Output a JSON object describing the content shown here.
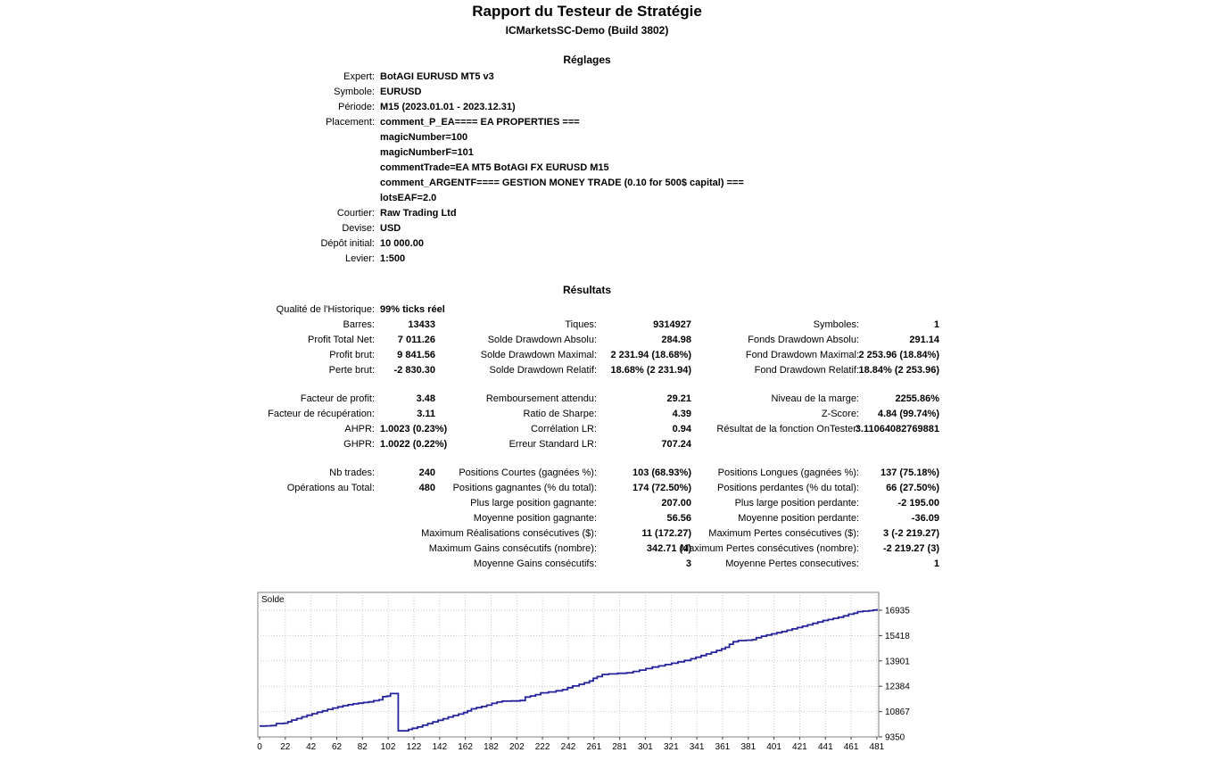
{
  "report": {
    "title": "Rapport du Testeur de Stratégie",
    "subtitle": "ICMarketsSC-Demo (Build 3802)",
    "settings_header": "Réglages",
    "results_header": "Résultats",
    "settings": [
      {
        "label": "Expert:",
        "value": "BotAGI EURUSD MT5 v3"
      },
      {
        "label": "Symbole:",
        "value": "EURUSD"
      },
      {
        "label": "Période:",
        "value": "M15 (2023.01.01 - 2023.12.31)"
      },
      {
        "label": "Placement:",
        "value": "comment_P_EA==== EA PROPERTIES ==="
      },
      {
        "label": "",
        "value": "magicNumber=100"
      },
      {
        "label": "",
        "value": "magicNumberF=101"
      },
      {
        "label": "",
        "value": "commentTrade=EA MT5 BotAGI FX EURUSD M15"
      },
      {
        "label": "",
        "value": "comment_ARGENTF==== GESTION MONEY TRADE (0.10 for 500$ capital) ==="
      },
      {
        "label": "",
        "value": "lotsEAF=2.0"
      },
      {
        "label": "Courtier:",
        "value": "Raw Trading Ltd"
      },
      {
        "label": "Devise:",
        "value": "USD"
      },
      {
        "label": "Dépôt initial:",
        "value": "10 000.00"
      },
      {
        "label": "Levier:",
        "value": "1:500"
      }
    ],
    "results_groups": [
      [
        [
          {
            "l": "Qualité de l'Historique:",
            "v": "99% ticks réel",
            "a": "l"
          },
          {
            "l": "",
            "v": ""
          },
          {
            "l": "",
            "v": ""
          }
        ],
        [
          {
            "l": "Barres:",
            "v": "13433"
          },
          {
            "l": "Tiques:",
            "v": "9314927"
          },
          {
            "l": "Symboles:",
            "v": "1"
          }
        ],
        [
          {
            "l": "Profit Total Net:",
            "v": "7 011.26"
          },
          {
            "l": "Solde Drawdown Absolu:",
            "v": "284.98"
          },
          {
            "l": "Fonds Drawdown Absolu:",
            "v": "291.14"
          }
        ],
        [
          {
            "l": "Profit brut:",
            "v": "9 841.56"
          },
          {
            "l": "Solde Drawdown Maximal:",
            "v": "2 231.94 (18.68%)"
          },
          {
            "l": "Fond Drawdown Maximal:",
            "v": "2 253.96 (18.84%)"
          }
        ],
        [
          {
            "l": "Perte brut:",
            "v": "-2 830.30"
          },
          {
            "l": "Solde Drawdown Relatif:",
            "v": "18.68% (2 231.94)"
          },
          {
            "l": "Fond Drawdown Relatif:",
            "v": "18.84% (2 253.96)"
          }
        ]
      ],
      [
        [
          {
            "l": "Facteur de profit:",
            "v": "3.48"
          },
          {
            "l": "Remboursement attendu:",
            "v": "29.21"
          },
          {
            "l": "Niveau de la marge:",
            "v": "2255.86%"
          }
        ],
        [
          {
            "l": "Facteur de récupération:",
            "v": "3.11"
          },
          {
            "l": "Ratio de Sharpe:",
            "v": "4.39"
          },
          {
            "l": "Z-Score:",
            "v": "4.84 (99.74%)"
          }
        ],
        [
          {
            "l": "AHPR:",
            "v": "1.0023 (0.23%)",
            "a": "l"
          },
          {
            "l": "Corrélation LR:",
            "v": "0.94"
          },
          {
            "l": "Résultat de la fonction OnTester:",
            "v": "3.11064082769881"
          }
        ],
        [
          {
            "l": "GHPR:",
            "v": "1.0022 (0.22%)",
            "a": "l"
          },
          {
            "l": "Erreur Standard LR:",
            "v": "707.24"
          },
          {
            "l": "",
            "v": ""
          }
        ]
      ],
      [
        [
          {
            "l": "Nb trades:",
            "v": "240"
          },
          {
            "l": "Positions Courtes (gagnées %):",
            "v": "103 (68.93%)"
          },
          {
            "l": "Positions Longues (gagnées %):",
            "v": "137 (75.18%)"
          }
        ],
        [
          {
            "l": "Opérations au Total:",
            "v": "480"
          },
          {
            "l": "Positions gagnantes (% du total):",
            "v": "174 (72.50%)"
          },
          {
            "l": "Positions perdantes (% du total):",
            "v": "66 (27.50%)"
          }
        ],
        [
          {
            "l": "",
            "v": ""
          },
          {
            "l": "Plus large position gagnante:",
            "v": "207.00"
          },
          {
            "l": "Plus large position perdante:",
            "v": "-2 195.00"
          }
        ],
        [
          {
            "l": "",
            "v": ""
          },
          {
            "l": "Moyenne position gagnante:",
            "v": "56.56"
          },
          {
            "l": "Moyenne position perdante:",
            "v": "-36.09"
          }
        ],
        [
          {
            "l": "",
            "v": ""
          },
          {
            "l": "Maximum Réalisations consécutives ($):",
            "v": "11 (172.27)"
          },
          {
            "l": "Maximum Pertes consécutives ($):",
            "v": "3 (-2 219.27)"
          }
        ],
        [
          {
            "l": "",
            "v": ""
          },
          {
            "l": "Maximum Gains consécutifs (nombre):",
            "v": "342.71 (4)"
          },
          {
            "l": "Maximum Pertes consécutives (nombre):",
            "v": "-2 219.27 (3)"
          }
        ],
        [
          {
            "l": "",
            "v": ""
          },
          {
            "l": "Moyenne Gains consécutifs:",
            "v": "3"
          },
          {
            "l": "Moyenne Pertes consecutives:",
            "v": "1"
          }
        ]
      ]
    ]
  },
  "chart_data": {
    "type": "line",
    "title": "Solde",
    "xlabel": "",
    "ylabel": "",
    "xlim": [
      0,
      481
    ],
    "ylim": [
      9350,
      18003
    ],
    "grid": true,
    "legend_position": "none",
    "line_color": "#24249c",
    "grid_color": "#c6c6c6",
    "border_color": "#808080",
    "x_tick_labels": [
      "0",
      "22",
      "42",
      "62",
      "82",
      "102",
      "122",
      "142",
      "162",
      "182",
      "202",
      "222",
      "242",
      "261",
      "281",
      "301",
      "321",
      "341",
      "361",
      "381",
      "401",
      "421",
      "441",
      "461",
      "481"
    ],
    "y_ticks": [
      9350,
      10867,
      12384,
      13901,
      15418,
      16935
    ],
    "series": [
      {
        "name": "Solde",
        "points": [
          [
            0,
            10000
          ],
          [
            5,
            10010
          ],
          [
            9,
            10030
          ],
          [
            13,
            10150
          ],
          [
            19,
            10170
          ],
          [
            22,
            10260
          ],
          [
            25,
            10360
          ],
          [
            29,
            10450
          ],
          [
            33,
            10550
          ],
          [
            37,
            10650
          ],
          [
            41,
            10740
          ],
          [
            45,
            10830
          ],
          [
            49,
            10910
          ],
          [
            53,
            11000
          ],
          [
            57,
            11080
          ],
          [
            61,
            11150
          ],
          [
            65,
            11220
          ],
          [
            69,
            11280
          ],
          [
            73,
            11330
          ],
          [
            77,
            11370
          ],
          [
            81,
            11410
          ],
          [
            85,
            11450
          ],
          [
            89,
            11520
          ],
          [
            93,
            11570
          ],
          [
            96,
            11760
          ],
          [
            99,
            11790
          ],
          [
            102,
            11947
          ],
          [
            107,
            11947
          ],
          [
            108,
            9715
          ],
          [
            113,
            9715
          ],
          [
            116,
            9800
          ],
          [
            119,
            9870
          ],
          [
            123,
            9950
          ],
          [
            127,
            10050
          ],
          [
            131,
            10150
          ],
          [
            135,
            10250
          ],
          [
            139,
            10350
          ],
          [
            143,
            10440
          ],
          [
            147,
            10540
          ],
          [
            151,
            10630
          ],
          [
            155,
            10720
          ],
          [
            159,
            10810
          ],
          [
            162,
            10910
          ],
          [
            165,
            11030
          ],
          [
            169,
            11100
          ],
          [
            173,
            11170
          ],
          [
            177,
            11250
          ],
          [
            181,
            11360
          ],
          [
            185,
            11440
          ],
          [
            189,
            11490
          ],
          [
            196,
            11505
          ],
          [
            203,
            11530
          ],
          [
            207,
            11740
          ],
          [
            211,
            11800
          ],
          [
            215,
            11880
          ],
          [
            219,
            11990
          ],
          [
            225,
            12040
          ],
          [
            231,
            12110
          ],
          [
            236,
            12180
          ],
          [
            240,
            12300
          ],
          [
            244,
            12400
          ],
          [
            249,
            12500
          ],
          [
            253,
            12590
          ],
          [
            257,
            12700
          ],
          [
            260,
            12860
          ],
          [
            263,
            12960
          ],
          [
            267,
            13090
          ],
          [
            272,
            13120
          ],
          [
            279,
            13160
          ],
          [
            286,
            13190
          ],
          [
            291,
            13270
          ],
          [
            296,
            13350
          ],
          [
            301,
            13440
          ],
          [
            306,
            13530
          ],
          [
            311,
            13600
          ],
          [
            316,
            13680
          ],
          [
            321,
            13760
          ],
          [
            326,
            13850
          ],
          [
            331,
            13930
          ],
          [
            336,
            14030
          ],
          [
            340,
            14120
          ],
          [
            344,
            14220
          ],
          [
            348,
            14320
          ],
          [
            352,
            14420
          ],
          [
            356,
            14520
          ],
          [
            360,
            14620
          ],
          [
            363,
            14720
          ],
          [
            366,
            14900
          ],
          [
            369,
            15050
          ],
          [
            373,
            15120
          ],
          [
            379,
            15140
          ],
          [
            384,
            15170
          ],
          [
            387,
            15290
          ],
          [
            391,
            15380
          ],
          [
            395,
            15450
          ],
          [
            399,
            15520
          ],
          [
            403,
            15590
          ],
          [
            407,
            15660
          ],
          [
            411,
            15740
          ],
          [
            415,
            15820
          ],
          [
            419,
            15900
          ],
          [
            423,
            15980
          ],
          [
            427,
            16060
          ],
          [
            431,
            16150
          ],
          [
            435,
            16230
          ],
          [
            439,
            16320
          ],
          [
            443,
            16380
          ],
          [
            447,
            16450
          ],
          [
            451,
            16520
          ],
          [
            455,
            16600
          ],
          [
            459,
            16700
          ],
          [
            463,
            16760
          ],
          [
            466,
            16850
          ],
          [
            470,
            16880
          ],
          [
            475,
            16910
          ],
          [
            478,
            16940
          ],
          [
            481,
            17011
          ]
        ]
      }
    ]
  }
}
